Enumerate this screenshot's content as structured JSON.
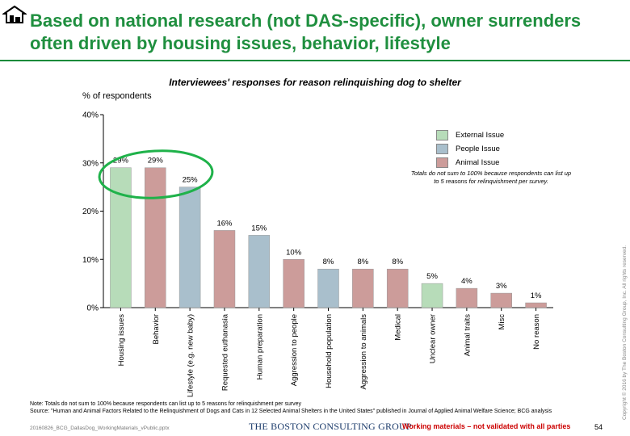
{
  "header": {
    "title": "Based on national research (not DAS-specific), owner surrenders often driven by housing issues, behavior, lifestyle",
    "logo_icon": "shelter-icon"
  },
  "chart_data": {
    "type": "bar",
    "title": "Interviewees' responses for reason relinquishing dog to shelter",
    "ylabel": "% of respondents",
    "ylim": [
      0,
      40
    ],
    "yticks": [
      "0%",
      "10%",
      "20%",
      "30%",
      "40%"
    ],
    "ytick_values": [
      0,
      10,
      20,
      30,
      40
    ],
    "grid": false,
    "legend_placement": "top-right",
    "categories": [
      "Housing issues",
      "Behavior",
      "Lifestyle (e.g. new baby)",
      "Requested euthanasia",
      "Human preparation",
      "Aggression to people",
      "Household population",
      "Aggression to animals",
      "Medical",
      "Unclear owner",
      "Animal traits",
      "Misc",
      "No reason"
    ],
    "values": [
      29,
      29,
      25,
      16,
      15,
      10,
      8,
      8,
      8,
      5,
      4,
      3,
      1
    ],
    "value_labels": [
      "29%",
      "29%",
      "25%",
      "16%",
      "15%",
      "10%",
      "8%",
      "8%",
      "8%",
      "5%",
      "4%",
      "3%",
      "1%"
    ],
    "groups": [
      "External Issue",
      "Animal Issue",
      "People Issue",
      "Animal Issue",
      "People Issue",
      "Animal Issue",
      "People Issue",
      "Animal Issue",
      "Animal Issue",
      "External Issue",
      "Animal Issue",
      "Animal Issue",
      "Animal Issue"
    ],
    "legend": [
      {
        "name": "External Issue",
        "color": "#b7dcb9"
      },
      {
        "name": "People Issue",
        "color": "#a9bfcc"
      },
      {
        "name": "Animal Issue",
        "color": "#cc9c9a"
      }
    ],
    "legend_note": "Totals do not sum to 100% because respondents can list up to 5 reasons for relinquishment per survey.",
    "highlight_color": "#1fb24a"
  },
  "footer": {
    "note": "Note: Totals do not sum to 100% because respondents can list up to 5 reasons for relinquishment per survey",
    "source": "Source: \"Human and Animal Factors Related to the Relinquishment of Dogs and Cats in 12 Selected Animal Shelters in the United States\" published in Journal of Applied Animal Welfare Science; BCG analysis",
    "filename": "20160826_BCG_DallasDog_WorkingMaterials_vPublic.pptx",
    "firm": "THE BOSTON CONSULTING GROUP",
    "working": "Working materials – not validated with all parties",
    "page": "54",
    "copyright": "Copyright © 2016 by The Boston Consulting Group, Inc. All rights reserved."
  }
}
